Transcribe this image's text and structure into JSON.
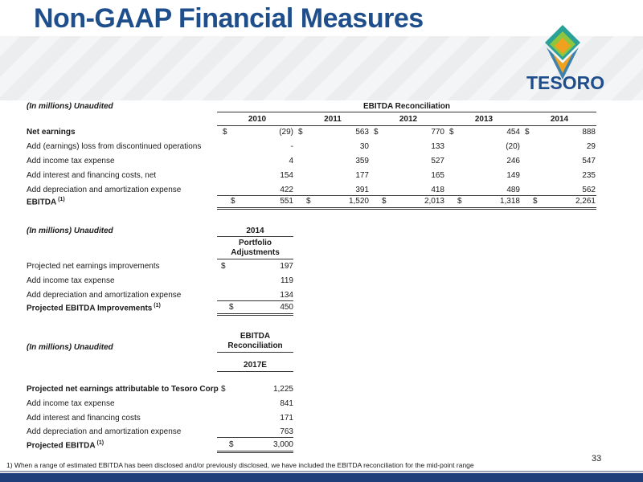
{
  "title": "Non-GAAP Financial Measures",
  "logo_text": "TESORO",
  "colors": {
    "title": "#1f4e8c",
    "accent_orange": "#f0a21e",
    "accent_teal": "#2aa197",
    "accent_green": "#8cc63f",
    "bar": "#1f3f7a"
  },
  "table1": {
    "caption": "(In millions) Unaudited",
    "group_header": "EBITDA Reconciliation",
    "years": [
      "2010",
      "2011",
      "2012",
      "2013",
      "2014"
    ],
    "rows": [
      {
        "label": "Net earnings",
        "values": [
          "(29)",
          "563",
          "770",
          "454",
          "888"
        ],
        "dollar": true
      },
      {
        "label": "Add (earnings) loss from discontinued operations",
        "values": [
          "-",
          "30",
          "133",
          "(20)",
          "29"
        ]
      },
      {
        "label": "Add income tax expense",
        "values": [
          "4",
          "359",
          "527",
          "246",
          "547"
        ]
      },
      {
        "label": "Add interest and financing costs, net",
        "values": [
          "154",
          "177",
          "165",
          "149",
          "235"
        ]
      },
      {
        "label": "Add depreciation and amortization expense",
        "values": [
          "422",
          "391",
          "418",
          "489",
          "562"
        ]
      }
    ],
    "total": {
      "label": "EBITDA",
      "sup": "(1)",
      "values": [
        "551",
        "1,520",
        "2,013",
        "1,318",
        "2,261"
      ]
    }
  },
  "table2": {
    "caption": "(In millions) Unaudited",
    "year": "2014",
    "col_header_1": "Portfolio",
    "col_header_2": "Adjustments",
    "rows": [
      {
        "label": "Projected net earnings improvements",
        "value": "197"
      },
      {
        "label": "Add income tax expense",
        "value": "119"
      },
      {
        "label": "Add depreciation and amortization expense",
        "value": "134"
      }
    ],
    "total": {
      "label": "Projected EBITDA Improvements",
      "sup": "(1)",
      "value": "450"
    }
  },
  "table3": {
    "caption": "(In millions) Unaudited",
    "col_header_1": "EBITDA",
    "col_header_2": "Reconciliation",
    "year": "2017E",
    "rows": [
      {
        "label": "Projected net earnings attributable to Tesoro Corp",
        "value": "1,225"
      },
      {
        "label": "Add income tax expense",
        "value": "841"
      },
      {
        "label": "Add interest and financing costs",
        "value": "171"
      },
      {
        "label": "Add depreciation and amortization expense",
        "value": "763"
      }
    ],
    "total": {
      "label": "Projected EBITDA",
      "sup": "(1)",
      "value": "3,000"
    }
  },
  "dollar_sign": "$",
  "footnote": "1) When a range of estimated EBITDA has been disclosed and/or previously disclosed, we have included the EBITDA reconciliation for the mid-point range",
  "page_number": "33"
}
